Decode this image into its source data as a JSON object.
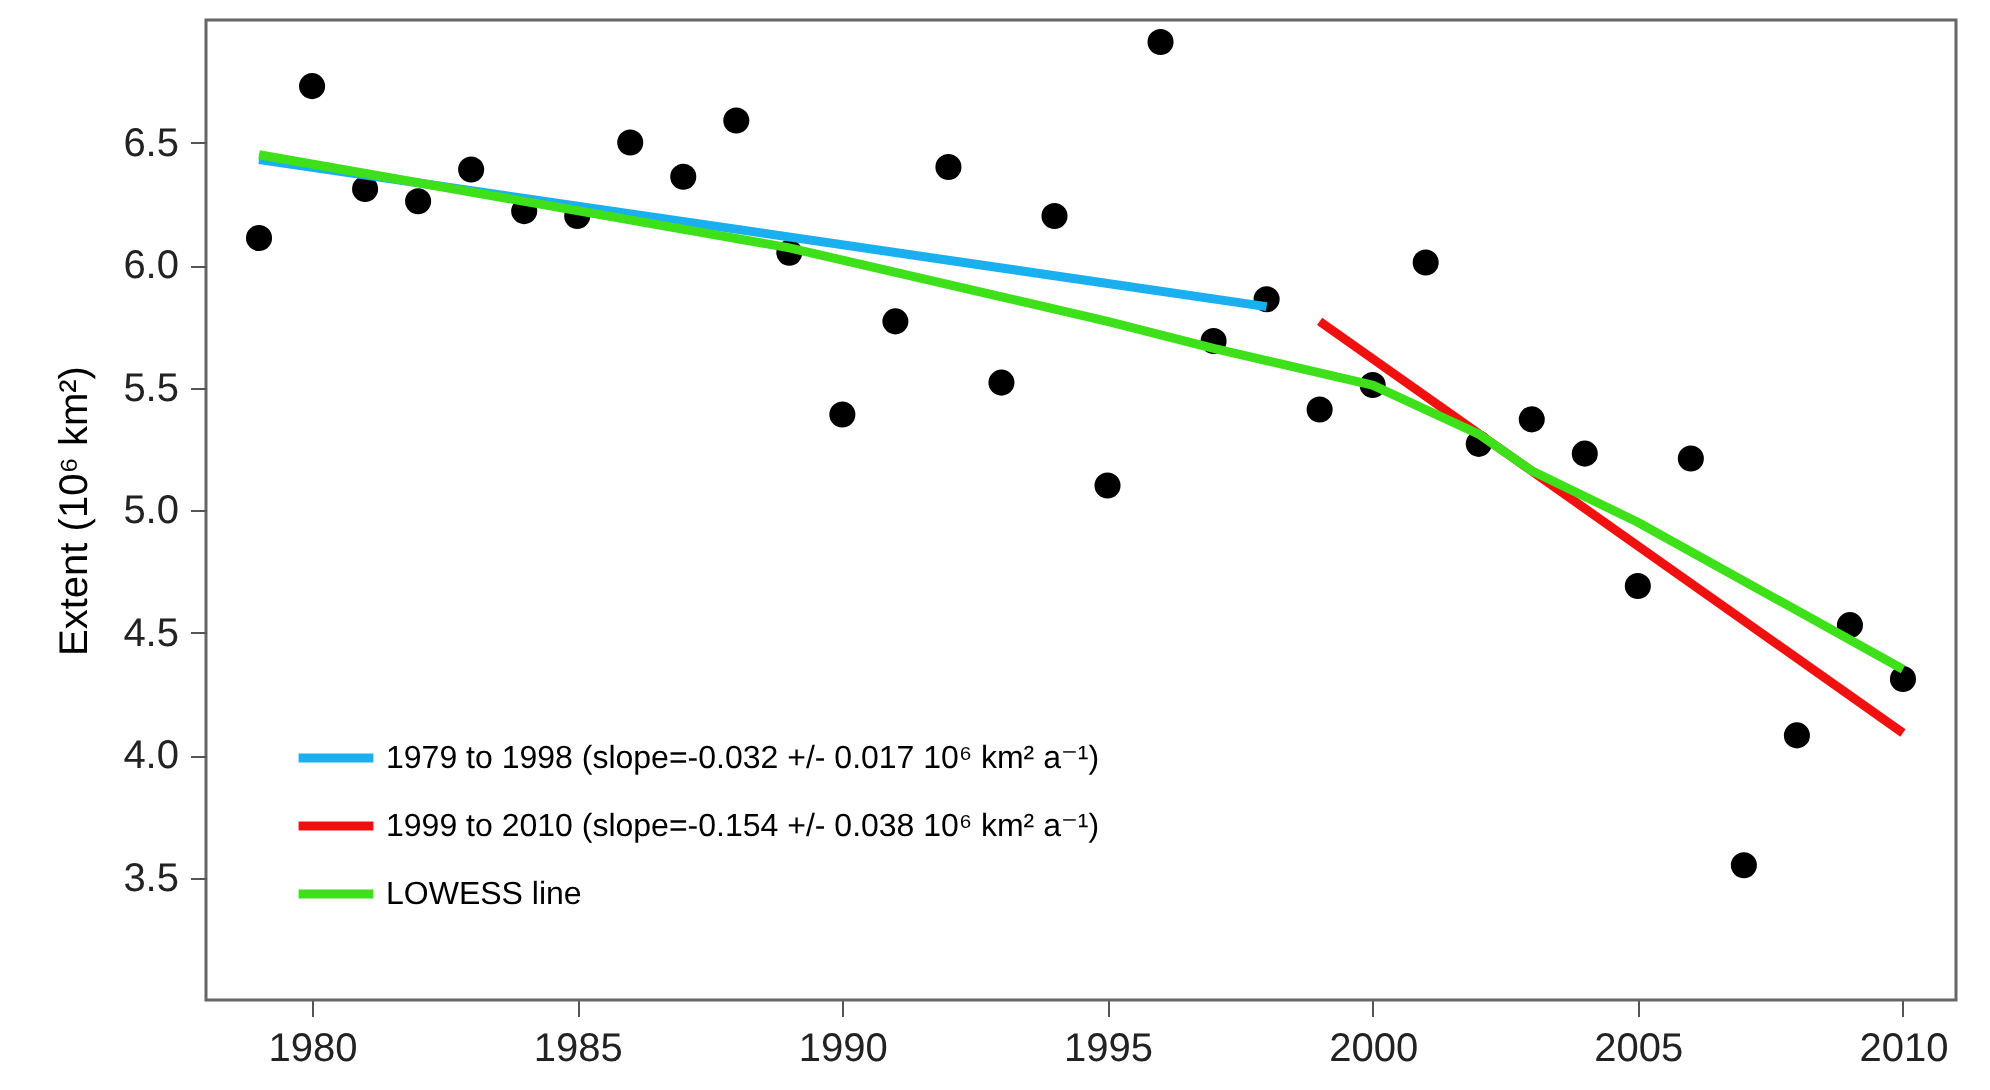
{
  "chart_data": {
    "type": "scatter",
    "ylabel": "Extent (10⁶ km²)",
    "xlim": [
      1978,
      2011
    ],
    "xticks": [
      1980,
      1985,
      1990,
      1995,
      2000,
      2005,
      2010
    ],
    "ylim": [
      3.0,
      7.0
    ],
    "yticks": [
      3.5,
      {
        "value": 4,
        "label": "4.0"
      },
      4.5,
      {
        "value": 5,
        "label": "5.0"
      },
      5.5,
      {
        "value": 6,
        "label": "6.0"
      },
      6.5
    ],
    "legend": "bottom left",
    "series": [
      {
        "color": "#000000",
        "marker": "circle",
        "x": [
          1979,
          1980,
          1981,
          1982,
          1983,
          1984,
          1985,
          1986,
          1987,
          1988,
          1989,
          1990,
          1991,
          1992,
          1993,
          1994,
          1995,
          1996,
          1997,
          1998,
          1999,
          2000,
          2001,
          2002,
          2003,
          2004,
          2005,
          2006,
          2007,
          2008,
          2009,
          2010
        ],
        "values": [
          6.11,
          6.73,
          6.31,
          6.26,
          6.39,
          6.22,
          6.2,
          6.5,
          6.36,
          6.59,
          6.05,
          5.39,
          5.77,
          6.4,
          5.52,
          6.2,
          5.1,
          6.91,
          5.69,
          5.86,
          5.41,
          5.51,
          6.01,
          5.27,
          5.37,
          5.23,
          4.69,
          5.21,
          3.55,
          4.08,
          4.53,
          4.31
        ]
      },
      {
        "type": "line",
        "name": "1979 to 1998 (slope=-0.032 +/- 0.017 10⁶ km² a⁻¹)",
        "color": "#1ab0f0",
        "x": [
          1979,
          1998
        ],
        "values": [
          6.43,
          5.83
        ]
      },
      {
        "type": "line",
        "name": "1999 to 2010 (slope=-0.154 +/- 0.038 10⁶ km² a⁻¹)",
        "color": "#f01010",
        "x": [
          1999,
          2010
        ],
        "values": [
          5.77,
          4.09
        ]
      },
      {
        "type": "line",
        "name": "LOWESS line",
        "color": "#3ee01a",
        "x": [
          1979,
          1989,
          1995,
          1997,
          2000,
          2002,
          2003,
          2005,
          2010
        ],
        "values": [
          6.45,
          6.07,
          5.77,
          5.66,
          5.51,
          5.31,
          5.16,
          4.95,
          4.35
        ]
      }
    ]
  }
}
